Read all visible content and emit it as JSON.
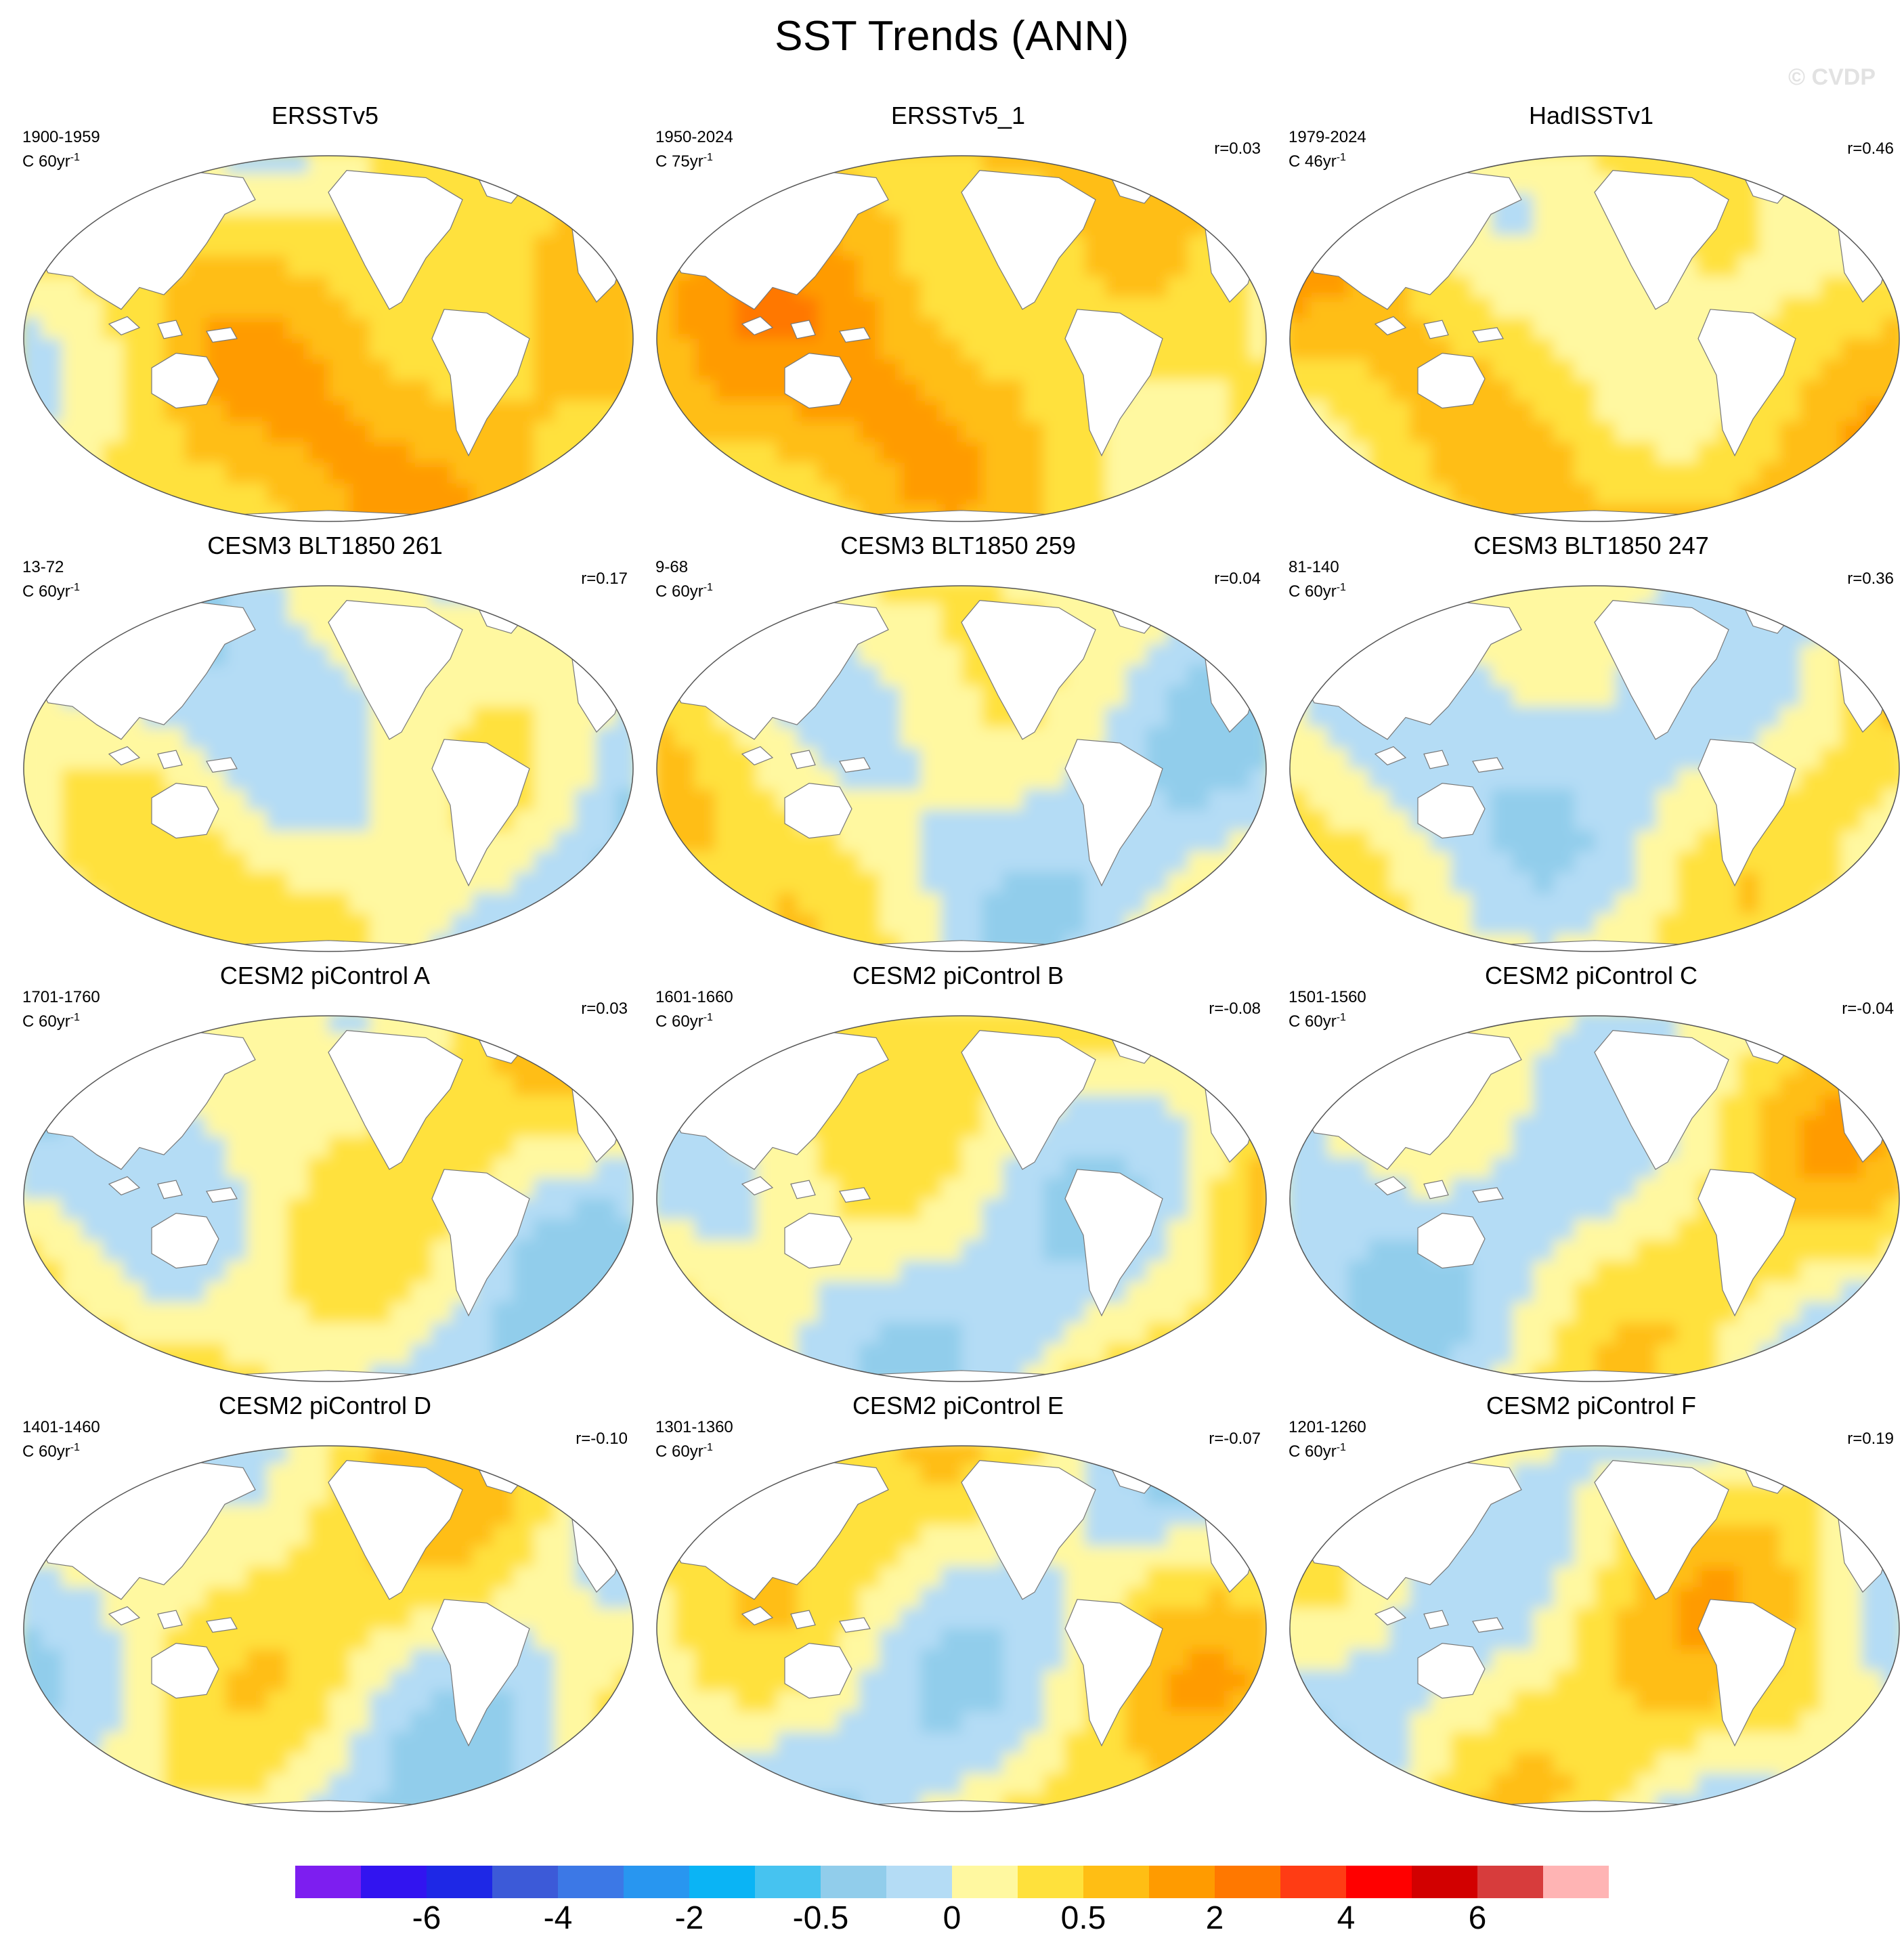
{
  "title": "SST Trends (ANN)",
  "watermark": "© CVDP",
  "units_prefix": "C",
  "colors": {
    "palette": [
      "#7d1ef0",
      "#3214f0",
      "#1e28e6",
      "#3c5ad8",
      "#3c78e6",
      "#2896f0",
      "#0ab4f5",
      "#46c3f0",
      "#91cdeb",
      "#b4dcf5",
      "#fff8a0",
      "#ffe13c",
      "#ffbe14",
      "#ff9b00",
      "#ff7800",
      "#ff3c14",
      "#ff0000",
      "#d20000",
      "#d73c3c",
      "#ffb4b4"
    ],
    "land": "#ffffff",
    "coast": "#777777"
  },
  "panels": [
    {
      "title": "ERSSTv5",
      "period": "1900-1959",
      "units": "60yr",
      "r": "",
      "bias": 1.2,
      "pattern": 1
    },
    {
      "title": "ERSSTv5_1",
      "period": "1950-2024",
      "units": "75yr",
      "r": "r=0.03",
      "bias": 1.5,
      "pattern": 2
    },
    {
      "title": "HadISSTv1",
      "period": "1979-2024",
      "units": "46yr",
      "r": "r=0.46",
      "bias": 1.0,
      "pattern": 3
    },
    {
      "title": "CESM3 BLT1850 261",
      "period": "13-72",
      "units": "60yr",
      "r": "r=0.17",
      "bias": -0.3,
      "pattern": 4
    },
    {
      "title": "CESM3 BLT1850 259",
      "period": "9-68",
      "units": "60yr",
      "r": "r=0.04",
      "bias": 0.0,
      "pattern": 5
    },
    {
      "title": "CESM3 BLT1850 247",
      "period": "81-140",
      "units": "60yr",
      "r": "r=0.36",
      "bias": -0.1,
      "pattern": 6
    },
    {
      "title": "CESM2 piControl A",
      "period": "1701-1760",
      "units": "60yr",
      "r": "r=0.03",
      "bias": 0.0,
      "pattern": 7
    },
    {
      "title": "CESM2 piControl B",
      "period": "1601-1660",
      "units": "60yr",
      "r": "r=-0.08",
      "bias": 0.1,
      "pattern": 8
    },
    {
      "title": "CESM2 piControl C",
      "period": "1501-1560",
      "units": "60yr",
      "r": "r=-0.04",
      "bias": 0.0,
      "pattern": 9
    },
    {
      "title": "CESM2 piControl D",
      "period": "1401-1460",
      "units": "60yr",
      "r": "r=-0.10",
      "bias": 0.0,
      "pattern": 10
    },
    {
      "title": "CESM2 piControl E",
      "period": "1301-1360",
      "units": "60yr",
      "r": "r=-0.07",
      "bias": 0.1,
      "pattern": 11
    },
    {
      "title": "CESM2 piControl F",
      "period": "1201-1260",
      "units": "60yr",
      "r": "r=0.19",
      "bias": 0.1,
      "pattern": 12
    }
  ],
  "colorbar": {
    "labels": [
      "-6",
      "-4",
      "-2",
      "-0.5",
      "0",
      "0.5",
      "2",
      "4",
      "6"
    ]
  }
}
